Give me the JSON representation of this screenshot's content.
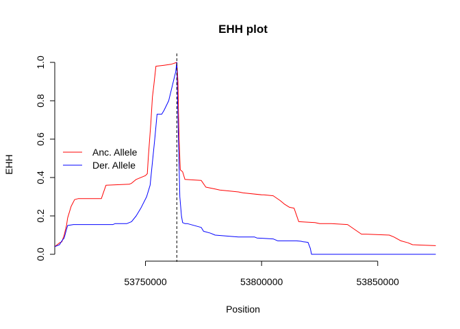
{
  "chart_data": {
    "type": "line",
    "title": "EHH plot",
    "xlabel": "Position",
    "ylabel": "EHH",
    "xlim": [
      53708000,
      53876000
    ],
    "ylim": [
      0,
      1
    ],
    "x_ticks": [
      53750000,
      53800000,
      53850000
    ],
    "x_tick_labels": [
      "53750000",
      "53800000",
      "53850000"
    ],
    "y_ticks": [
      0,
      0.2,
      0.4,
      0.6,
      0.8,
      1
    ],
    "y_tick_labels": [
      "0.0",
      "0.2",
      "0.4",
      "0.6",
      "0.8",
      "1.0"
    ],
    "grid": false,
    "legend_position": "left",
    "focal_position": 53763500,
    "series": [
      {
        "name": "Anc. Allele",
        "color": "#ff0000",
        "x": [
          53711000,
          53712000,
          53713000,
          53714000,
          53715000,
          53716000,
          53716500,
          53718000,
          53719500,
          53721000,
          53731000,
          53733000,
          53743000,
          53744000,
          53746000,
          53750000,
          53750800,
          53751200,
          53751800,
          53752300,
          53753000,
          53753600,
          53754500,
          53758000,
          53761000,
          53763500,
          53764000,
          53764200,
          53764500,
          53764800,
          53765000,
          53766000,
          53767000,
          53774000,
          53776000,
          53780000,
          53782000,
          53790000,
          53792000,
          53800000,
          53801000,
          53805000,
          53808000,
          53810000,
          53812000,
          53814000,
          53816000,
          53819000,
          53823000,
          53825000,
          53830000,
          53837000,
          53840000,
          53843000,
          53845000,
          53855000,
          53857000,
          53860000,
          53863000,
          53865000,
          53868000,
          53875000
        ],
        "y": [
          0.04,
          0.05,
          0.06,
          0.065,
          0.1,
          0.15,
          0.19,
          0.25,
          0.285,
          0.29,
          0.29,
          0.36,
          0.365,
          0.37,
          0.39,
          0.41,
          0.42,
          0.5,
          0.6,
          0.68,
          0.82,
          0.88,
          0.98,
          0.985,
          0.99,
          1.0,
          0.9,
          0.75,
          0.6,
          0.5,
          0.44,
          0.43,
          0.39,
          0.385,
          0.35,
          0.34,
          0.335,
          0.325,
          0.32,
          0.31,
          0.31,
          0.305,
          0.28,
          0.26,
          0.245,
          0.24,
          0.17,
          0.168,
          0.165,
          0.16,
          0.16,
          0.155,
          0.13,
          0.105,
          0.105,
          0.1,
          0.09,
          0.07,
          0.06,
          0.05,
          0.048,
          0.045
        ]
      },
      {
        "name": "Der. Allele",
        "color": "#0000ff",
        "x": [
          53711000,
          53712000,
          53713000,
          53714000,
          53715000,
          53716000,
          53716500,
          53719000,
          53730000,
          53736000,
          53737000,
          53742000,
          53744000,
          53746000,
          53748000,
          53750500,
          53752000,
          53754000,
          53755000,
          53756500,
          53757000,
          53758000,
          53760000,
          53761000,
          53762000,
          53763000,
          53763500,
          53764200,
          53764800,
          53765500,
          53766000,
          53767000,
          53768000,
          53774000,
          53775000,
          53778000,
          53780000,
          53785000,
          53790000,
          53797000,
          53798000,
          53805000,
          53807000,
          53815000,
          53817000,
          53818000,
          53819000,
          53820000,
          53821000,
          53821500,
          53875000
        ],
        "y": [
          0.04,
          0.045,
          0.05,
          0.07,
          0.085,
          0.13,
          0.15,
          0.155,
          0.155,
          0.155,
          0.16,
          0.16,
          0.17,
          0.2,
          0.24,
          0.3,
          0.36,
          0.6,
          0.73,
          0.73,
          0.73,
          0.75,
          0.8,
          0.85,
          0.9,
          0.95,
          1.0,
          0.6,
          0.3,
          0.2,
          0.165,
          0.16,
          0.16,
          0.14,
          0.12,
          0.11,
          0.1,
          0.095,
          0.09,
          0.09,
          0.085,
          0.08,
          0.07,
          0.07,
          0.068,
          0.065,
          0.064,
          0.062,
          0.03,
          0.0,
          0.0
        ]
      }
    ]
  }
}
